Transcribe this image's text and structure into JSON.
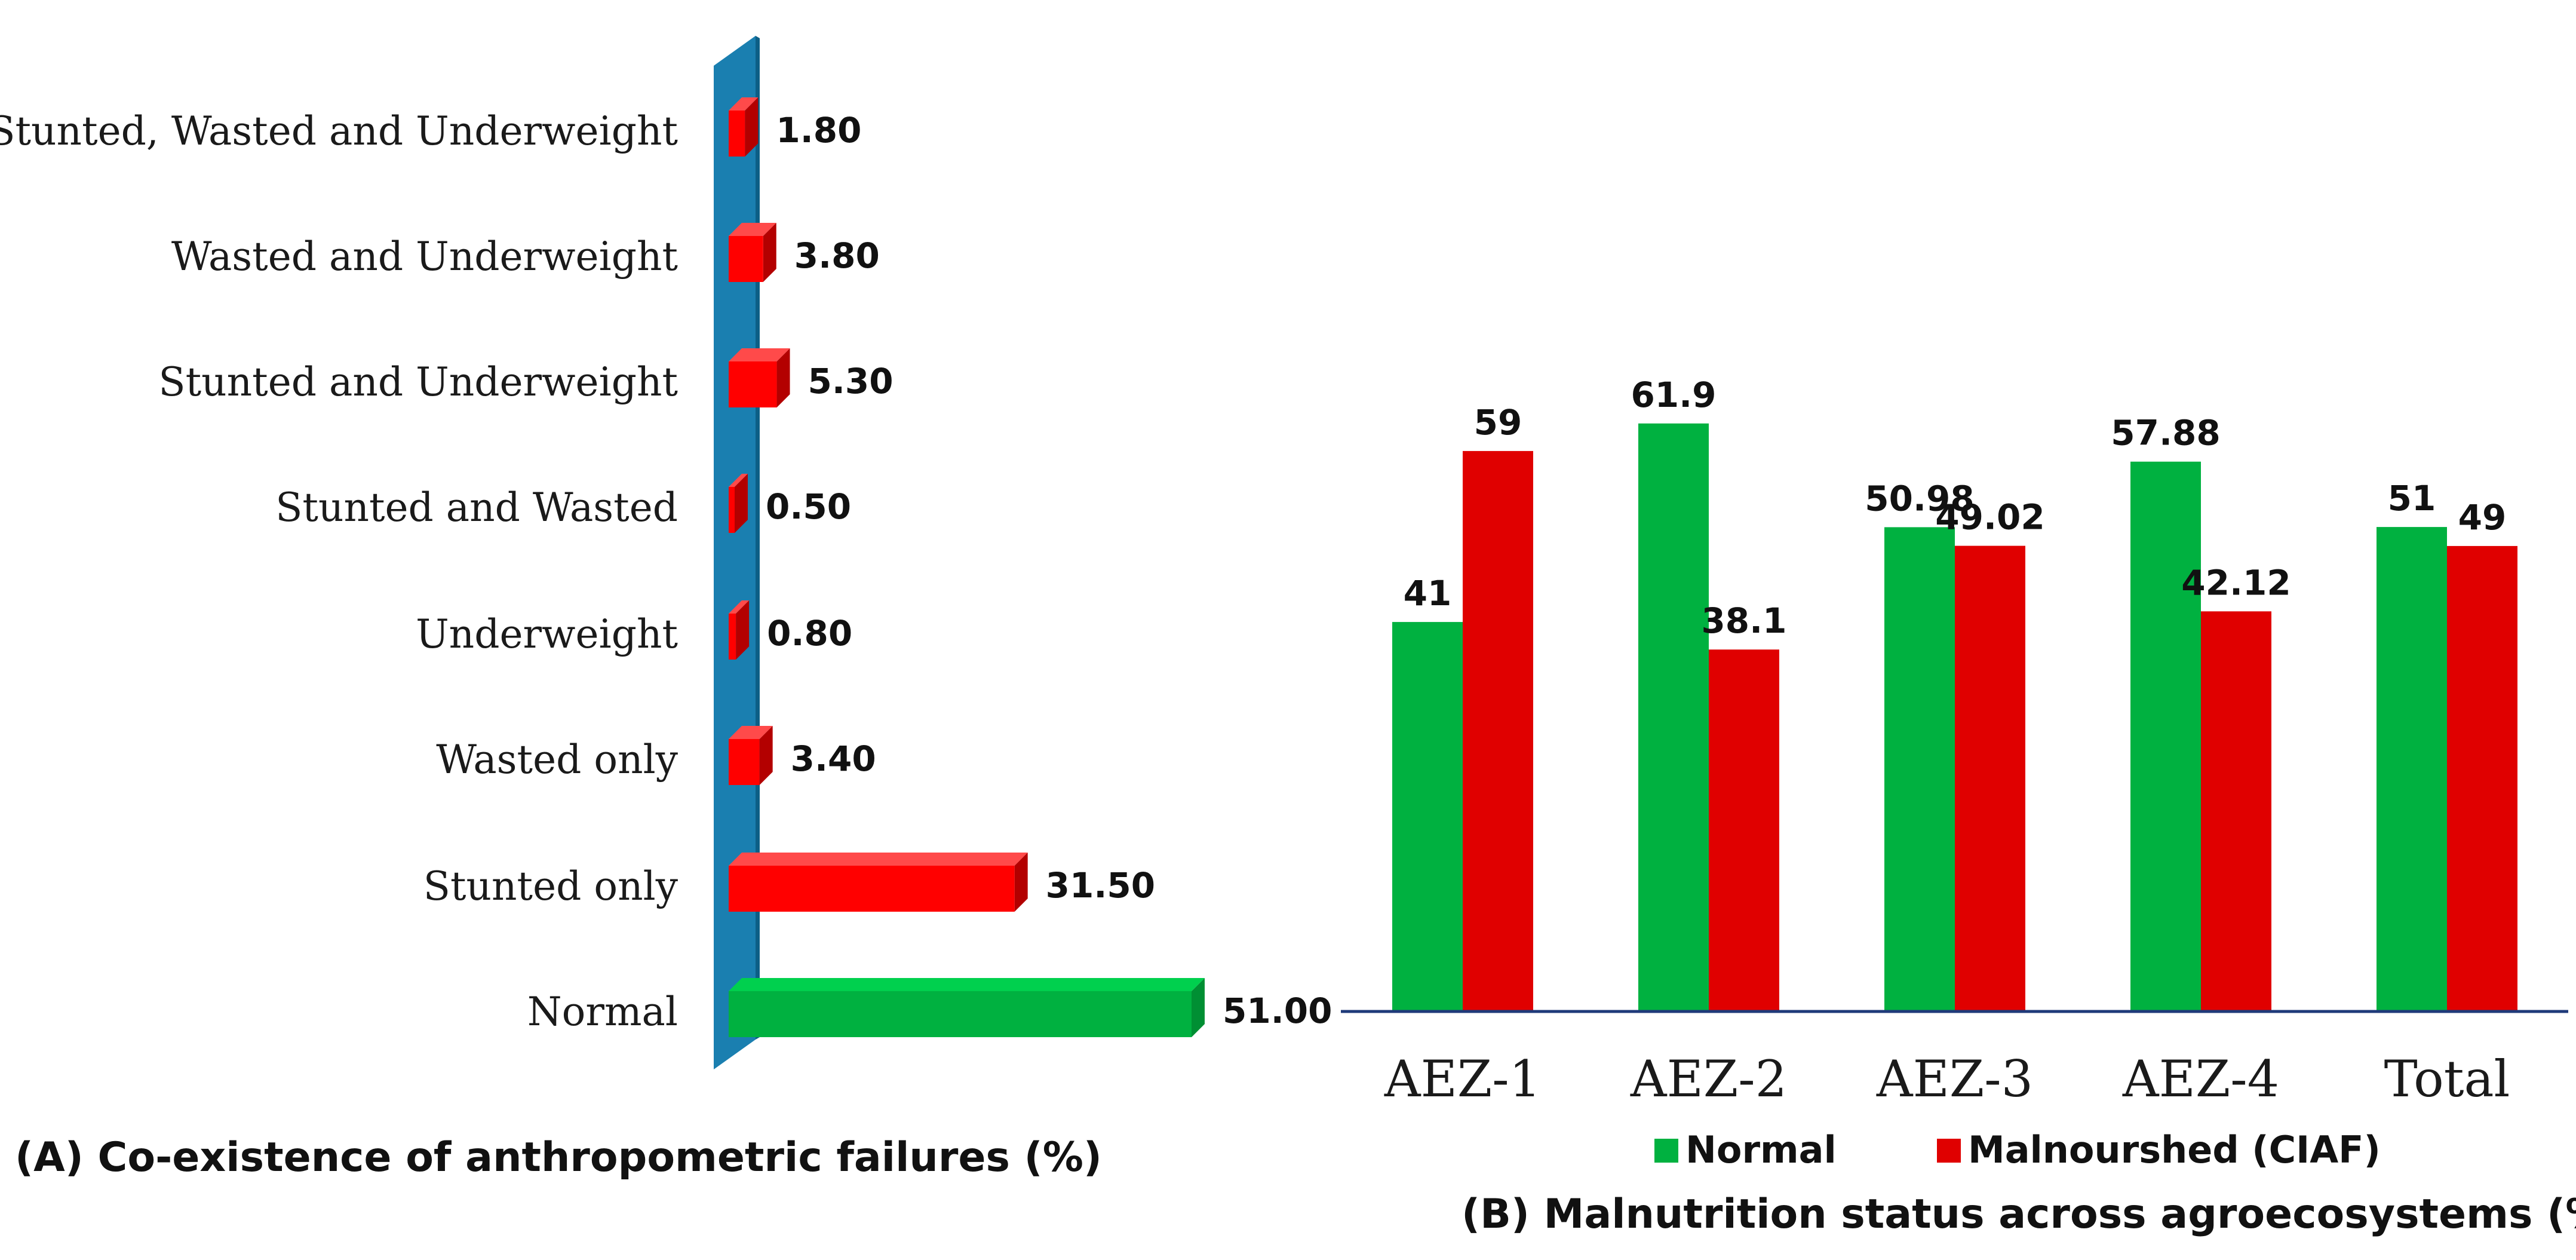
{
  "colors": {
    "normal_front": "#00b140",
    "normal_top": "#00d04e",
    "normal_side": "#008f33",
    "mal_front": "#ff0000",
    "mal_top": "#ff4a4a",
    "mal_side": "#b30000",
    "wall_front": "#1a7fb0",
    "wall_side": "#0d5f86",
    "b_normal": "#00b140",
    "b_mal": "#e00000",
    "axis": "#1f3a7a"
  },
  "chart_data": [
    {
      "id": "A",
      "type": "bar",
      "orientation": "horizontal",
      "title": "(A) Co-existence of anthropometric failures (%)",
      "categories": [
        "Stunted, Wasted and Underweight",
        "Wasted and Underweight",
        "Stunted and Underweight",
        "Stunted  and Wasted",
        "Underweight",
        "Wasted only",
        "Stunted only",
        "Normal"
      ],
      "values": [
        1.8,
        3.8,
        5.3,
        0.5,
        0.8,
        3.4,
        31.5,
        51.0
      ],
      "labels": [
        "1.80",
        "3.80",
        "5.30",
        "0.50",
        "0.80",
        "3.40",
        "31.50",
        "51.00"
      ],
      "series_kind": [
        "mal",
        "mal",
        "mal",
        "mal",
        "mal",
        "mal",
        "mal",
        "normal"
      ],
      "xlim": [
        0,
        51
      ]
    },
    {
      "id": "B",
      "type": "bar",
      "title": "(B)  Malnutrition status across agroecosystems (%)",
      "categories": [
        "AEZ-1",
        "AEZ-2",
        "AEZ-3",
        "AEZ-4",
        "Total"
      ],
      "series": [
        {
          "name": "Normal",
          "values": [
            41,
            61.9,
            50.98,
            57.88,
            51
          ],
          "labels": [
            "41",
            "61.9",
            "50.98",
            "57.88",
            "51"
          ]
        },
        {
          "name": "Malnourshed (CIAF)",
          "values": [
            59,
            38.1,
            49.02,
            42.12,
            49
          ],
          "labels": [
            "59",
            "38.1",
            "49.02",
            "42.12",
            "49"
          ]
        }
      ],
      "ylim": [
        0,
        66
      ]
    }
  ]
}
